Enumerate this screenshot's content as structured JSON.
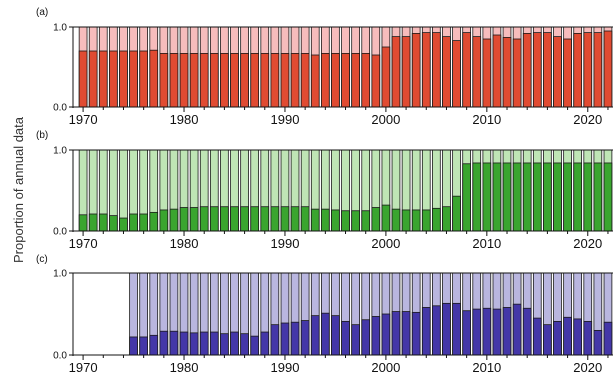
{
  "figure": {
    "ylabel": "Proportion of annual data"
  },
  "chart_data": [
    {
      "type": "bar",
      "panel_label": "(a)",
      "stacked": true,
      "xlim": [
        1969.0,
        2022.5
      ],
      "ylim": [
        0,
        1
      ],
      "x_ticks": [
        "1970",
        "1980",
        "1990",
        "2000",
        "2010",
        "2020"
      ],
      "y_ticks": [
        "0.0",
        "1.0"
      ],
      "colors": {
        "lower": "#e04b32",
        "upper": "#f6bcbc"
      },
      "years": [
        1970,
        1971,
        1972,
        1973,
        1974,
        1975,
        1976,
        1977,
        1978,
        1979,
        1980,
        1981,
        1982,
        1983,
        1984,
        1985,
        1986,
        1987,
        1988,
        1989,
        1990,
        1991,
        1992,
        1993,
        1994,
        1995,
        1996,
        1997,
        1998,
        1999,
        2000,
        2001,
        2002,
        2003,
        2004,
        2005,
        2006,
        2007,
        2008,
        2009,
        2010,
        2011,
        2012,
        2013,
        2014,
        2015,
        2016,
        2017,
        2018,
        2019,
        2020,
        2021,
        2022
      ],
      "lower_values": [
        0.7,
        0.7,
        0.7,
        0.7,
        0.7,
        0.7,
        0.7,
        0.71,
        0.67,
        0.67,
        0.67,
        0.67,
        0.67,
        0.67,
        0.67,
        0.67,
        0.67,
        0.67,
        0.67,
        0.67,
        0.67,
        0.67,
        0.67,
        0.65,
        0.67,
        0.67,
        0.67,
        0.67,
        0.67,
        0.65,
        0.75,
        0.88,
        0.88,
        0.92,
        0.93,
        0.93,
        0.88,
        0.83,
        0.93,
        0.88,
        0.85,
        0.9,
        0.87,
        0.85,
        0.92,
        0.93,
        0.93,
        0.88,
        0.85,
        0.92,
        0.93,
        0.93,
        0.95
      ],
      "upper_values": [
        1,
        1,
        1,
        1,
        1,
        1,
        1,
        1,
        1,
        1,
        1,
        1,
        1,
        1,
        1,
        1,
        1,
        1,
        1,
        1,
        1,
        1,
        1,
        1,
        1,
        1,
        1,
        1,
        1,
        1,
        1,
        1,
        1,
        1,
        1,
        1,
        1,
        1,
        1,
        1,
        1,
        1,
        1,
        1,
        1,
        1,
        1,
        1,
        1,
        1,
        1,
        1,
        1
      ]
    },
    {
      "type": "bar",
      "panel_label": "(b)",
      "stacked": true,
      "xlim": [
        1969.0,
        2022.5
      ],
      "ylim": [
        0,
        1
      ],
      "x_ticks": [
        "1970",
        "1980",
        "1990",
        "2000",
        "2010",
        "2020"
      ],
      "y_ticks": [
        "0.0",
        "1.0"
      ],
      "colors": {
        "lower": "#3aa52f",
        "upper": "#bfe5b5"
      },
      "years": [
        1970,
        1971,
        1972,
        1973,
        1974,
        1975,
        1976,
        1977,
        1978,
        1979,
        1980,
        1981,
        1982,
        1983,
        1984,
        1985,
        1986,
        1987,
        1988,
        1989,
        1990,
        1991,
        1992,
        1993,
        1994,
        1995,
        1996,
        1997,
        1998,
        1999,
        2000,
        2001,
        2002,
        2003,
        2004,
        2005,
        2006,
        2007,
        2008,
        2009,
        2010,
        2011,
        2012,
        2013,
        2014,
        2015,
        2016,
        2017,
        2018,
        2019,
        2020,
        2021,
        2022
      ],
      "lower_values": [
        0.2,
        0.21,
        0.21,
        0.19,
        0.16,
        0.21,
        0.21,
        0.23,
        0.26,
        0.27,
        0.29,
        0.29,
        0.3,
        0.3,
        0.3,
        0.3,
        0.3,
        0.3,
        0.3,
        0.3,
        0.3,
        0.3,
        0.3,
        0.27,
        0.27,
        0.26,
        0.25,
        0.25,
        0.25,
        0.29,
        0.32,
        0.27,
        0.26,
        0.26,
        0.26,
        0.28,
        0.3,
        0.43,
        0.83,
        0.84,
        0.84,
        0.84,
        0.84,
        0.84,
        0.84,
        0.84,
        0.84,
        0.84,
        0.84,
        0.84,
        0.84,
        0.84,
        0.84
      ],
      "upper_values": [
        1,
        1,
        1,
        1,
        1,
        1,
        1,
        1,
        1,
        1,
        1,
        1,
        1,
        1,
        1,
        1,
        1,
        1,
        1,
        1,
        1,
        1,
        1,
        1,
        1,
        1,
        1,
        1,
        1,
        1,
        1,
        1,
        1,
        1,
        1,
        1,
        1,
        1,
        1,
        1,
        1,
        1,
        1,
        1,
        1,
        1,
        1,
        1,
        1,
        1,
        1,
        1,
        1
      ]
    },
    {
      "type": "bar",
      "panel_label": "(c)",
      "stacked": true,
      "xlim": [
        1969.0,
        2022.5
      ],
      "ylim": [
        0,
        1
      ],
      "x_ticks": [
        "1970",
        "1980",
        "1990",
        "2000",
        "2010",
        "2020"
      ],
      "y_ticks": [
        "0.0",
        "1.0"
      ],
      "colors": {
        "lower": "#4437a8",
        "upper": "#b9b6df"
      },
      "years": [
        1975,
        1976,
        1977,
        1978,
        1979,
        1980,
        1981,
        1982,
        1983,
        1984,
        1985,
        1986,
        1987,
        1988,
        1989,
        1990,
        1991,
        1992,
        1993,
        1994,
        1995,
        1996,
        1997,
        1998,
        1999,
        2000,
        2001,
        2002,
        2003,
        2004,
        2005,
        2006,
        2007,
        2008,
        2009,
        2010,
        2011,
        2012,
        2013,
        2014,
        2015,
        2016,
        2017,
        2018,
        2019,
        2020,
        2021,
        2022
      ],
      "lower_values": [
        0.22,
        0.22,
        0.24,
        0.29,
        0.29,
        0.28,
        0.27,
        0.28,
        0.28,
        0.26,
        0.28,
        0.26,
        0.23,
        0.28,
        0.37,
        0.39,
        0.4,
        0.42,
        0.48,
        0.51,
        0.48,
        0.41,
        0.37,
        0.43,
        0.47,
        0.5,
        0.53,
        0.53,
        0.52,
        0.58,
        0.6,
        0.63,
        0.63,
        0.54,
        0.56,
        0.57,
        0.56,
        0.58,
        0.62,
        0.57,
        0.45,
        0.37,
        0.41,
        0.46,
        0.44,
        0.41,
        0.3,
        0.4
      ],
      "upper_values": [
        1,
        1,
        1,
        1,
        1,
        1,
        1,
        1,
        1,
        1,
        1,
        1,
        1,
        1,
        1,
        1,
        1,
        1,
        1,
        1,
        1,
        1,
        1,
        1,
        1,
        1,
        1,
        1,
        1,
        1,
        1,
        1,
        1,
        1,
        1,
        1,
        1,
        1,
        1,
        1,
        1,
        1,
        1,
        1,
        1,
        1,
        1,
        1
      ]
    }
  ]
}
